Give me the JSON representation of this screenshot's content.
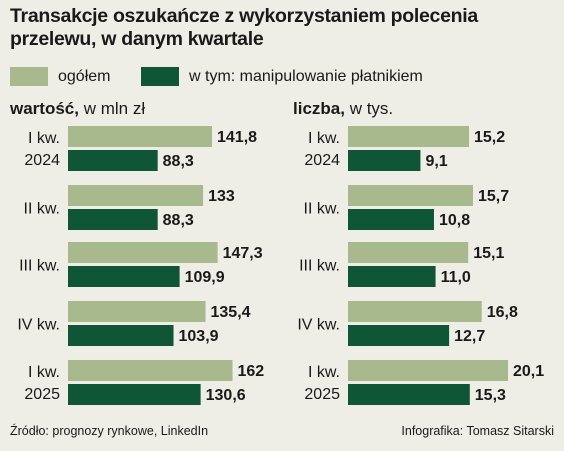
{
  "title": "Transakcje oszukańcze z wykorzystaniem polecenia przelewu, w danym kwartale",
  "legend": [
    {
      "label": "ogółem",
      "color": "#a9b98e"
    },
    {
      "label": "w tym: manipulowanie płatnikiem",
      "color": "#0e5636"
    }
  ],
  "footer": {
    "source": "Źródło: prognozy rynkowe, LinkedIn",
    "credit": "Infografika: Tomasz Sitarski"
  },
  "chart_data": [
    {
      "type": "bar",
      "orientation": "horizontal",
      "title_bold": "wartość,",
      "title_rest": " w mln zł",
      "categories": [
        [
          "I kw.",
          "2024"
        ],
        [
          "II kw."
        ],
        [
          "III kw."
        ],
        [
          "IV kw."
        ],
        [
          "I kw.",
          "2025"
        ]
      ],
      "series": [
        {
          "name": "ogółem",
          "values": [
            141.8,
            133,
            147.3,
            135.4,
            162
          ],
          "labels": [
            "141,8",
            "133",
            "147,3",
            "135,4",
            "162"
          ]
        },
        {
          "name": "w tym: manipulowanie płatnikiem",
          "values": [
            88.3,
            88.3,
            109.9,
            103.9,
            130.6
          ],
          "labels": [
            "88,3",
            "88,3",
            "109,9",
            "103,9",
            "130,6"
          ]
        }
      ]
    },
    {
      "type": "bar",
      "orientation": "horizontal",
      "title_bold": "liczba,",
      "title_rest": " w tys.",
      "categories": [
        [
          "I kw.",
          "2024"
        ],
        [
          "II kw."
        ],
        [
          "III kw."
        ],
        [
          "IV kw."
        ],
        [
          "I kw.",
          "2025"
        ]
      ],
      "series": [
        {
          "name": "ogółem",
          "values": [
            15.2,
            15.7,
            15.1,
            16.8,
            20.1
          ],
          "labels": [
            "15,2",
            "15,7",
            "15,1",
            "16,8",
            "20,1"
          ]
        },
        {
          "name": "w tym: manipulowanie płatnikiem",
          "values": [
            9.1,
            10.8,
            11.0,
            12.7,
            15.3
          ],
          "labels": [
            "9,1",
            "10,8",
            "11,0",
            "12,7",
            "15,3"
          ]
        }
      ]
    }
  ]
}
